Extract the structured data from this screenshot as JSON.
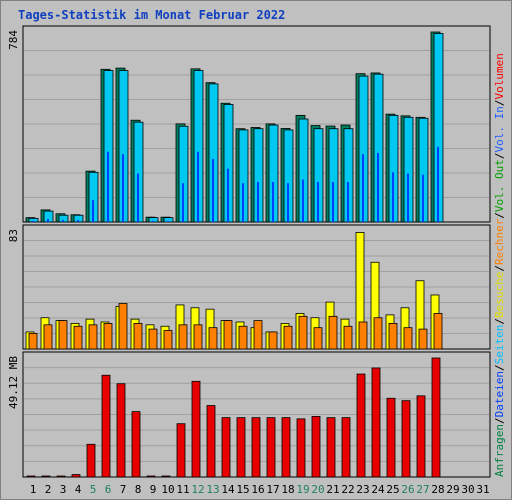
{
  "title": "Tages-Statistik im Monat Februar 2022",
  "right_legend": [
    {
      "text": "Anfragen",
      "color": "#008040"
    },
    {
      "text": "/",
      "color": "#000000"
    },
    {
      "text": "Dateien",
      "color": "#0040ff"
    },
    {
      "text": "/",
      "color": "#000000"
    },
    {
      "text": "Seiten",
      "color": "#00c0ff"
    },
    {
      "text": "/",
      "color": "#000000"
    },
    {
      "text": "Besuche",
      "color": "#e0e000"
    },
    {
      "text": "/",
      "color": "#000000"
    },
    {
      "text": "Rechner",
      "color": "#ff8000"
    },
    {
      "text": "/",
      "color": "#000000"
    },
    {
      "text": "Vol. Out",
      "color": "#00a000"
    },
    {
      "text": "/",
      "color": "#000000"
    },
    {
      "text": "Vol. In",
      "color": "#2060ff"
    },
    {
      "text": "/",
      "color": "#000000"
    },
    {
      "text": "Volumen",
      "color": "#ff0000"
    }
  ],
  "chart_data": {
    "type": "bar",
    "x": [
      "1",
      "2",
      "3",
      "4",
      "5",
      "6",
      "7",
      "8",
      "9",
      "10",
      "11",
      "12",
      "13",
      "14",
      "15",
      "16",
      "17",
      "18",
      "19",
      "20",
      "21",
      "22",
      "23",
      "24",
      "25",
      "26",
      "27",
      "28",
      "29",
      "30",
      "31"
    ],
    "x_weekend_days": [
      "5",
      "6",
      "12",
      "13",
      "19",
      "20",
      "26",
      "27"
    ],
    "panels": [
      {
        "id": "top",
        "ymax_label": "784",
        "ymax": 784,
        "series": [
          {
            "name": "Anfragen",
            "color": "#008060",
            "values": [
              18,
              50,
              34,
              30,
              210,
              630,
              635,
              420,
              20,
              20,
              405,
              632,
              575,
              490,
              385,
              390,
              405,
              386,
              440,
              398,
              396,
              400,
              612,
              615,
              445,
              438,
              432,
              784,
              null,
              null,
              null
            ]
          },
          {
            "name": "Seiten",
            "color": "#00c8f0",
            "values": [
              15,
              45,
              28,
              28,
              205,
              625,
              625,
              412,
              18,
              18,
              395,
              625,
              570,
              485,
              380,
              385,
              400,
              380,
              425,
              385,
              385,
              385,
              602,
              610,
              440,
              432,
              428,
              778,
              null,
              null,
              null
            ]
          },
          {
            "name": "Dateien",
            "color": "#0040ff",
            "values": [
              5,
              12,
              8,
              8,
              90,
              290,
              280,
              200,
              5,
              5,
              160,
              290,
              260,
              220,
              160,
              165,
              165,
              160,
              175,
              165,
              165,
              165,
              280,
              285,
              205,
              200,
              195,
              310,
              null,
              null,
              null
            ]
          }
        ]
      },
      {
        "id": "middle",
        "ymax_label": "83",
        "ymax": 83,
        "series": [
          {
            "name": "Besuche",
            "color": "#ffff00",
            "values": [
              12,
              22,
              20,
              18,
              21,
              19,
              30,
              21,
              17,
              16,
              31,
              29,
              28,
              20,
              19,
              15,
              12,
              18,
              25,
              22,
              33,
              21,
              82,
              61,
              24,
              29,
              48,
              38,
              null,
              null,
              null
            ]
          },
          {
            "name": "Rechner",
            "color": "#ff8000",
            "values": [
              11,
              17,
              20,
              16,
              17,
              18,
              32,
              18,
              14,
              13,
              17,
              17,
              15,
              20,
              16,
              20,
              12,
              16,
              23,
              15,
              23,
              16,
              19,
              22,
              18,
              15,
              14,
              25,
              null,
              null,
              null
            ]
          }
        ]
      },
      {
        "id": "bottom",
        "ymax_label": "49.12 MB",
        "ymax": 49.12,
        "series": [
          {
            "name": "Volumen",
            "color": "#e80000",
            "values": [
              0.4,
              0.4,
              0.4,
              1.0,
              13.5,
              42.0,
              38.5,
              27.0,
              0.3,
              0.3,
              22.0,
              39.5,
              29.5,
              24.5,
              24.5,
              24.5,
              24.5,
              24.5,
              24.0,
              25.0,
              24.5,
              24.5,
              42.5,
              45.0,
              32.5,
              31.5,
              33.5,
              49.12,
              null,
              null,
              null
            ]
          }
        ]
      }
    ]
  }
}
